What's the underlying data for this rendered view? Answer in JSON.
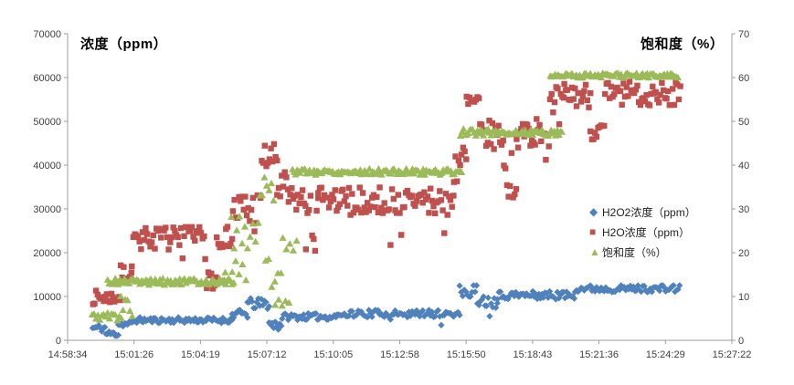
{
  "titles": {
    "left": "浓度（ppm）",
    "right": "饱和度（%）"
  },
  "legend": [
    {
      "glyph": "◆",
      "label": "H2O2浓度（ppm）",
      "color": "#4F81BD"
    },
    {
      "glyph": "■",
      "label": "H2O浓度（ppm）",
      "color": "#C0504D"
    },
    {
      "glyph": "▲",
      "label": "饱和度（%）",
      "color": "#9BBB59"
    }
  ],
  "chart_data": {
    "type": "scatter",
    "title": "",
    "grid": false,
    "legend_position": "right-middle",
    "x_axis": {
      "start": "14:58:34",
      "end": "15:27:22",
      "tick_interval_seconds": 172.8,
      "total_seconds": 1728,
      "tick_labels": [
        "14:58:34",
        "15:01:26",
        "15:04:19",
        "15:07:12",
        "15:10:05",
        "15:12:58",
        "15:15:50",
        "15:18:43",
        "15:21:36",
        "15:24:29",
        "15:27:22"
      ]
    },
    "y_axis_left": {
      "label": "浓度（ppm）",
      "min": 0,
      "max": 70000,
      "tick_step": 10000,
      "tick_labels": [
        "0",
        "10000",
        "20000",
        "30000",
        "40000",
        "50000",
        "60000",
        "70000"
      ]
    },
    "y_axis_right": {
      "label": "饱和度（%）",
      "min": 0,
      "max": 70,
      "tick_step": 10,
      "tick_labels": [
        "0",
        "10",
        "20",
        "30",
        "40",
        "50",
        "60",
        "70"
      ]
    },
    "sample_interval_seconds": 4,
    "segments_format": "[t_start_s, t_end_s, base_value, jitter, occasional_tail_offset, sample_step_s]",
    "series": [
      {
        "name": "H2O2浓度（ppm）",
        "axis": "left",
        "marker": "diamond",
        "color": "#4F81BD",
        "seed": 11,
        "description": "stepwise rise: ~2800 → 4600 flat → bump to ~9000 at 15:06 → ~5500-6000 long flat → jump to ~11500 at 15:15:50 → slow rise to ~12000 at end",
        "segments": [
          [
            65,
            100,
            2800,
            900,
            0,
            4
          ],
          [
            100,
            132,
            1500,
            700,
            0,
            4
          ],
          [
            132,
            168,
            3700,
            700,
            0,
            4
          ],
          [
            168,
            428,
            4600,
            650,
            0,
            4
          ],
          [
            428,
            468,
            6000,
            1000,
            0,
            4
          ],
          [
            468,
            524,
            8300,
            1300,
            0,
            4
          ],
          [
            524,
            558,
            3600,
            1400,
            0,
            4
          ],
          [
            558,
            700,
            5400,
            750,
            0,
            4
          ],
          [
            700,
            1020,
            6100,
            850,
            -2200,
            4
          ],
          [
            1020,
            1066,
            11300,
            1500,
            0,
            4
          ],
          [
            1066,
            1118,
            8800,
            1300,
            -2800,
            4
          ],
          [
            1118,
            1320,
            10300,
            950,
            0,
            4
          ],
          [
            1320,
            1595,
            11800,
            800,
            0,
            4
          ]
        ]
      },
      {
        "name": "H2O浓度（ppm）",
        "axis": "left",
        "marker": "square",
        "color": "#C0504D",
        "seed": 7,
        "description": "steps: ~9800 → ~23000 band → spike 45500 at 15:07:12 → ~32000 band → spike 57000 at 15:15:50 → ~47500 band → ~56000 band to end",
        "segments": [
          [
            66,
            138,
            9800,
            1600,
            0,
            4
          ],
          [
            138,
            167,
            15300,
            1900,
            0,
            4
          ],
          [
            167,
            358,
            23300,
            2600,
            -8500,
            4
          ],
          [
            358,
            388,
            15000,
            5000,
            0,
            4
          ],
          [
            388,
            430,
            23600,
            2400,
            0,
            4
          ],
          [
            430,
            505,
            29500,
            5500,
            0,
            4
          ],
          [
            505,
            545,
            41500,
            3500,
            0,
            4
          ],
          [
            545,
            575,
            34500,
            4000,
            0,
            4
          ],
          [
            575,
            620,
            32000,
            3200,
            0,
            4
          ],
          [
            620,
            652,
            26500,
            7000,
            0,
            4
          ],
          [
            652,
            1005,
            31800,
            3200,
            -7500,
            4
          ],
          [
            1005,
            1038,
            40500,
            5500,
            0,
            4
          ],
          [
            1038,
            1073,
            53800,
            3300,
            0,
            4
          ],
          [
            1073,
            1135,
            46800,
            3400,
            0,
            4
          ],
          [
            1135,
            1168,
            37500,
            6000,
            0,
            4
          ],
          [
            1168,
            1255,
            47500,
            3500,
            -4500,
            4
          ],
          [
            1255,
            1292,
            51500,
            6500,
            0,
            4
          ],
          [
            1292,
            1360,
            56000,
            2900,
            0,
            4
          ],
          [
            1360,
            1398,
            47800,
            2100,
            0,
            4
          ],
          [
            1398,
            1595,
            56200,
            2900,
            -4000,
            4
          ]
        ]
      },
      {
        "name": "饱和度（%）",
        "axis": "right",
        "marker": "triangle",
        "color": "#9BBB59",
        "seed": 5,
        "description": "flat bands: ~5.5% → 13% → scattered 7-37% during 15:05-15:08 transition → 38.5% → 47.5% → 60.5% to end",
        "segments": [
          [
            64,
            140,
            5.5,
            1.0,
            0,
            5
          ],
          [
            138,
            172,
            8,
            2.6,
            0,
            6
          ],
          [
            104,
            434,
            13.4,
            0.75,
            0,
            4
          ],
          [
            410,
            470,
            16,
            2.5,
            0,
            9
          ],
          [
            426,
            500,
            25,
            5,
            0,
            7
          ],
          [
            500,
            540,
            34.5,
            2.8,
            0,
            6
          ],
          [
            515,
            562,
            17,
            5,
            0,
            8
          ],
          [
            540,
            578,
            7.5,
            2,
            0,
            9
          ],
          [
            560,
            600,
            26,
            6,
            0,
            9
          ],
          [
            585,
            1026,
            38.5,
            0.7,
            0,
            4
          ],
          [
            1022,
            1286,
            47.5,
            0.8,
            0,
            4
          ],
          [
            1256,
            1588,
            60.5,
            0.55,
            0,
            4
          ]
        ]
      }
    ]
  }
}
